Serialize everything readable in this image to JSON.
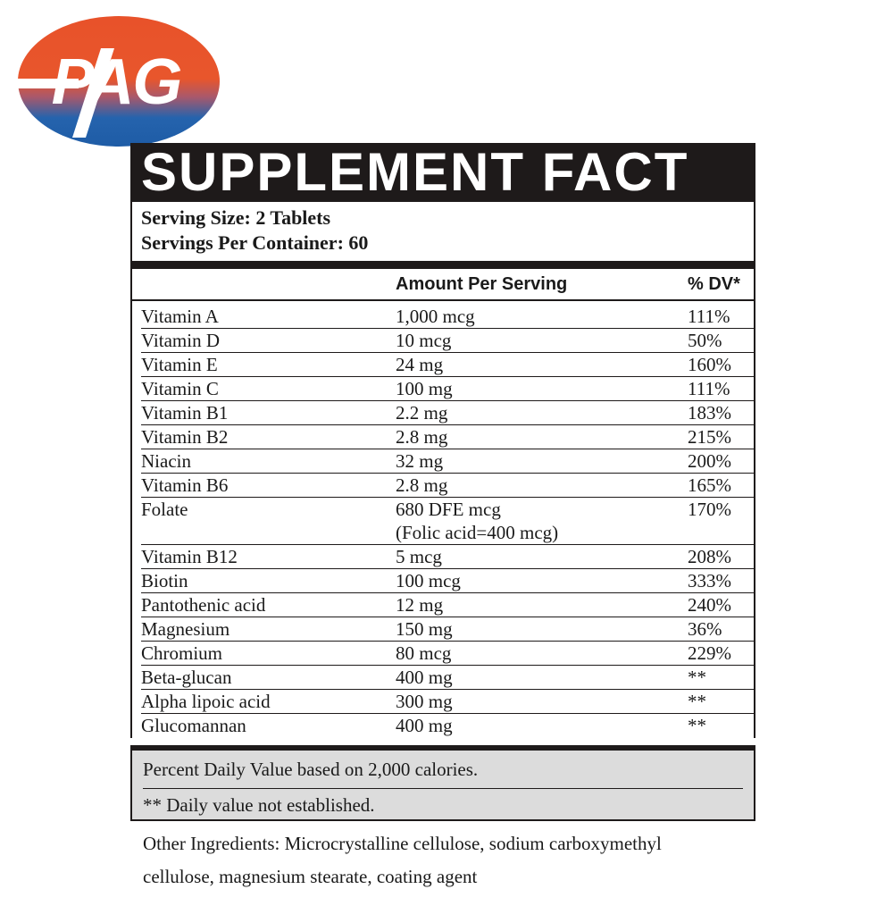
{
  "logo": {
    "text": "PAG",
    "colors": {
      "top": "#e8522a",
      "bottom": "#1f5fa8"
    }
  },
  "label": {
    "title": "SUPPLEMENT FACT",
    "serving_size": "Serving Size: 2 Tablets",
    "servings_per_container": "Servings Per Container: 60",
    "col_amount": "Amount Per Serving",
    "col_dv": "% DV*"
  },
  "rows": [
    {
      "name": "Vitamin A",
      "amount": "1,000 mcg",
      "amount2": "",
      "dv": "111%"
    },
    {
      "name": "Vitamin D",
      "amount": "10 mcg",
      "amount2": "",
      "dv": "50%"
    },
    {
      "name": "Vitamin E",
      "amount": "24 mg",
      "amount2": "",
      "dv": "160%"
    },
    {
      "name": "Vitamin C",
      "amount": "100 mg",
      "amount2": "",
      "dv": "111%"
    },
    {
      "name": "Vitamin B1",
      "amount": "2.2 mg",
      "amount2": "",
      "dv": "183%"
    },
    {
      "name": "Vitamin B2",
      "amount": "2.8 mg",
      "amount2": "",
      "dv": "215%"
    },
    {
      "name": "Niacin",
      "amount": "32 mg",
      "amount2": "",
      "dv": "200%"
    },
    {
      "name": "Vitamin B6",
      "amount": "2.8 mg",
      "amount2": "",
      "dv": "165%"
    },
    {
      "name": "Folate",
      "amount": "680 DFE mcg",
      "amount2": "(Folic acid=400 mcg)",
      "dv": "170%"
    },
    {
      "name": "Vitamin B12",
      "amount": "5 mcg",
      "amount2": "",
      "dv": "208%"
    },
    {
      "name": "Biotin",
      "amount": "100 mcg",
      "amount2": "",
      "dv": "333%"
    },
    {
      "name": "Pantothenic acid",
      "amount": "12 mg",
      "amount2": "",
      "dv": "240%"
    },
    {
      "name": "Magnesium",
      "amount": "150 mg",
      "amount2": "",
      "dv": "36%"
    },
    {
      "name": "Chromium",
      "amount": "80 mcg",
      "amount2": "",
      "dv": "229%"
    },
    {
      "name": "Beta-glucan",
      "amount": "400 mg",
      "amount2": "",
      "dv": "**"
    },
    {
      "name": "Alpha lipoic acid",
      "amount": "300 mg",
      "amount2": "",
      "dv": "**"
    },
    {
      "name": "Glucomannan",
      "amount": "400 mg",
      "amount2": "",
      "dv": "**"
    }
  ],
  "footnotes": {
    "daily_value": "Percent Daily Value based on 2,000 calories.",
    "not_established": "** Daily value not established."
  },
  "other_ingredients": {
    "line1": "Other Ingredients: Microcrystalline cellulose, sodium carboxymethyl",
    "line2": "cellulose, magnesium stearate, coating agent"
  }
}
